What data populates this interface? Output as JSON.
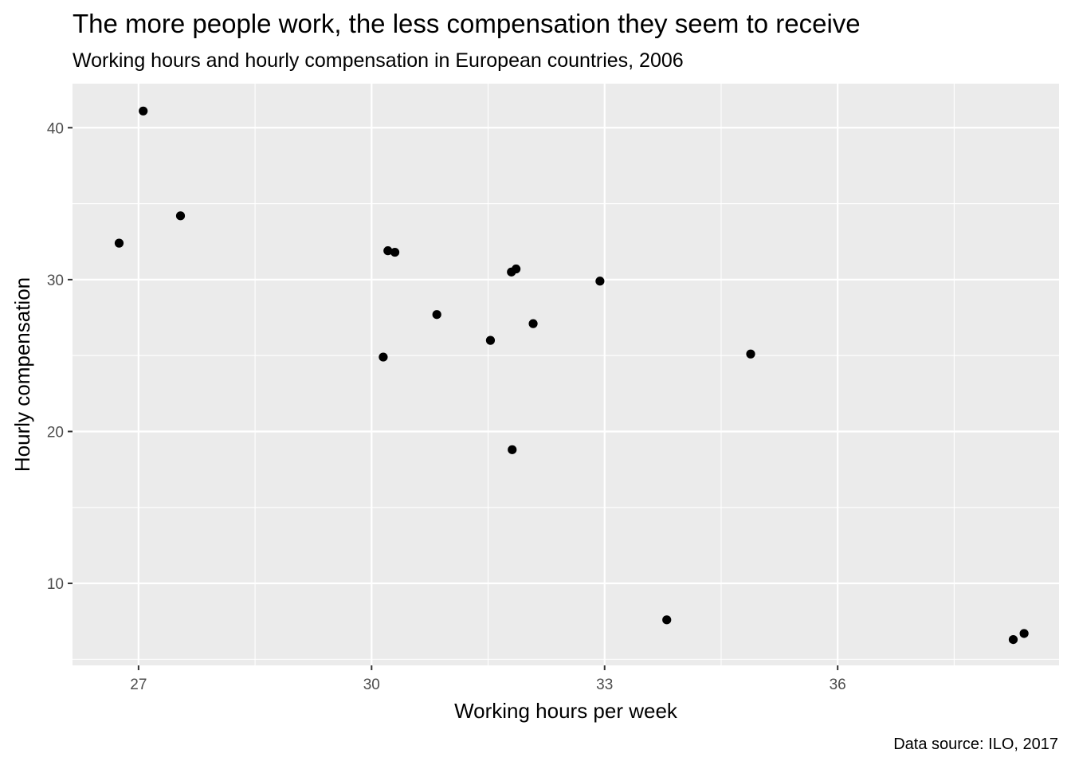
{
  "chart_data": {
    "type": "scatter",
    "title": "The more people work, the less compensation they seem to receive",
    "subtitle": "Working hours and hourly compensation in European countries, 2006",
    "caption": "Data source: ILO, 2017",
    "xlabel": "Working hours per week",
    "ylabel": "Hourly compensation",
    "xlim": [
      26.15,
      38.85
    ],
    "ylim": [
      4.6,
      42.9
    ],
    "x_ticks": [
      27,
      30,
      33,
      36
    ],
    "x_tick_labels": [
      "27",
      "30",
      "33",
      "36"
    ],
    "x_minor": [
      28.5,
      31.5,
      34.5,
      37.5
    ],
    "y_ticks": [
      10,
      20,
      30,
      40
    ],
    "y_tick_labels": [
      "10",
      "20",
      "30",
      "40"
    ],
    "y_minor": [
      5,
      15,
      25,
      35
    ],
    "grid": true,
    "legend": "none",
    "colors": {
      "panel": "#ebebeb",
      "grid": "#ffffff",
      "point": "#000000"
    },
    "series": [
      {
        "x": [
          27.06,
          26.75,
          27.54,
          30.21,
          30.3,
          30.84,
          30.15,
          31.53,
          31.8,
          31.86,
          32.08,
          31.81,
          32.94,
          34.88,
          33.8,
          38.26,
          38.4
        ],
        "y": [
          41.1,
          32.4,
          34.2,
          31.9,
          31.8,
          27.7,
          24.9,
          26.0,
          30.5,
          30.7,
          27.1,
          18.8,
          29.9,
          25.1,
          7.6,
          6.3,
          6.7
        ]
      }
    ]
  }
}
